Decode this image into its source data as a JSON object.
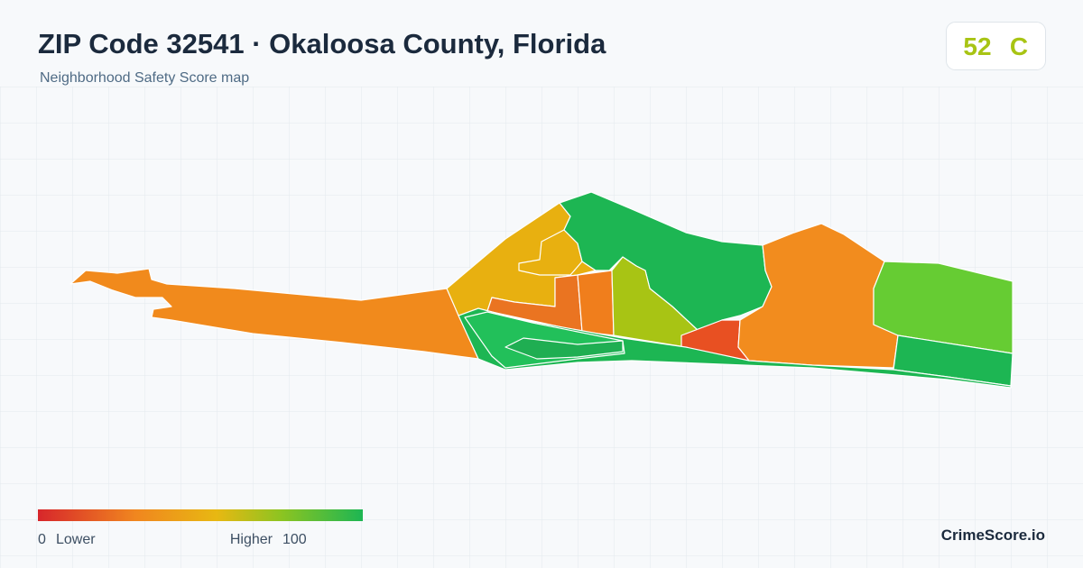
{
  "header": {
    "title": "ZIP Code 32541 · Okaloosa County, Florida",
    "subtitle": "Neighborhood Safety Score map"
  },
  "score": {
    "value": 52,
    "grade": "C"
  },
  "legend": {
    "min": 0,
    "min_label": "Lower",
    "max_label": "Higher",
    "max": 100
  },
  "footer": {
    "brand": "CrimeScore.io"
  }
}
